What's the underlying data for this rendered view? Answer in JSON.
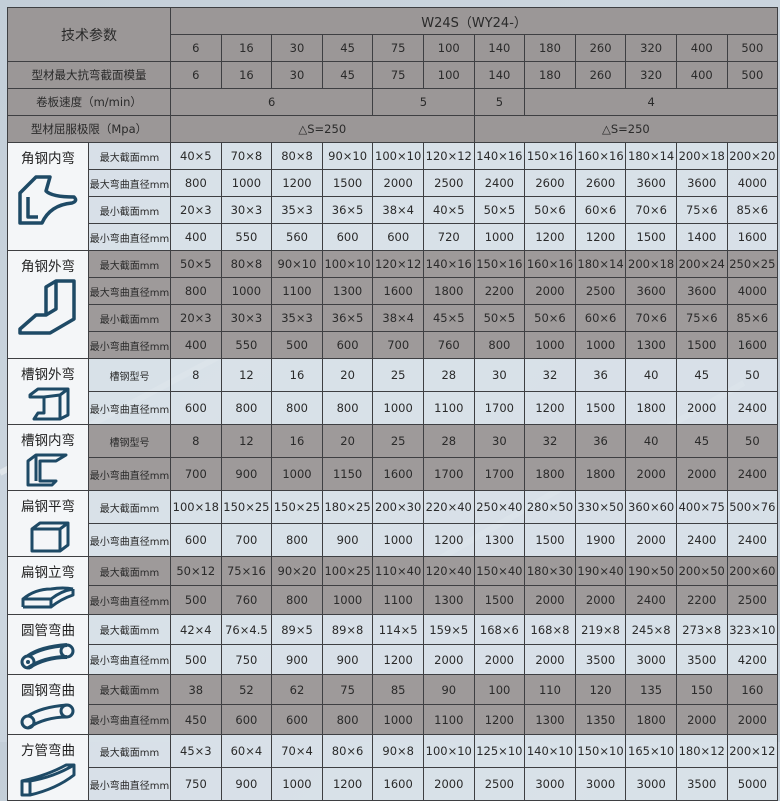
{
  "header": {
    "title": "技术参数",
    "model": "W24S（WY24-）",
    "models": [
      "6",
      "16",
      "30",
      "45",
      "75",
      "100",
      "140",
      "180",
      "260",
      "320",
      "400",
      "500"
    ],
    "modulus_label": "型材最大抗弯截面模量",
    "modulus": [
      "6",
      "16",
      "30",
      "45",
      "75",
      "100",
      "140",
      "180",
      "260",
      "320",
      "400",
      "500"
    ],
    "speed_label": "卷板速度（m/min）",
    "speed": [
      {
        "value": "6",
        "span": 4
      },
      {
        "value": "5",
        "span": 2
      },
      {
        "value": "5",
        "span": 1
      },
      {
        "value": "4",
        "span": 5
      }
    ],
    "yield_label": "型材屈服极限（Mpa）",
    "yield": [
      {
        "value": "△S=250",
        "span": 6
      },
      {
        "value": "△S=250",
        "span": 6
      }
    ]
  },
  "groups": [
    {
      "name": "角钢内弯",
      "icon": "angle-inner-bend-icon",
      "shade": "light",
      "rows": [
        {
          "label": "最大截面mm",
          "values": [
            "40×5",
            "70×8",
            "80×8",
            "90×10",
            "100×10",
            "120×12",
            "140×16",
            "150×16",
            "160×16",
            "180×14",
            "200×18",
            "200×20"
          ]
        },
        {
          "label": "最大弯曲直径mm",
          "values": [
            "800",
            "1000",
            "1200",
            "1500",
            "2000",
            "2500",
            "2400",
            "2600",
            "2600",
            "3600",
            "3600",
            "4000"
          ]
        },
        {
          "label": "最小截面mm",
          "values": [
            "20×3",
            "30×3",
            "35×3",
            "36×5",
            "38×4",
            "40×5",
            "50×5",
            "50×6",
            "60×6",
            "70×6",
            "75×6",
            "85×6"
          ]
        },
        {
          "label": "最小弯曲直径mm",
          "values": [
            "400",
            "550",
            "560",
            "600",
            "600",
            "720",
            "1000",
            "1200",
            "1200",
            "1500",
            "1400",
            "1600"
          ]
        }
      ]
    },
    {
      "name": "角钢外弯",
      "icon": "angle-outer-bend-icon",
      "shade": "dark",
      "rows": [
        {
          "label": "最大截面mm",
          "values": [
            "50×5",
            "80×8",
            "90×10",
            "100×10",
            "120×12",
            "140×16",
            "150×16",
            "160×16",
            "180×14",
            "200×18",
            "200×24",
            "250×25"
          ]
        },
        {
          "label": "最大弯曲直径mm",
          "values": [
            "800",
            "1000",
            "1100",
            "1300",
            "1600",
            "1800",
            "2200",
            "2000",
            "2500",
            "3600",
            "3600",
            "4000"
          ]
        },
        {
          "label": "最小截面mm",
          "values": [
            "20×3",
            "30×3",
            "35×3",
            "36×5",
            "38×4",
            "45×5",
            "50×5",
            "50×6",
            "60×6",
            "70×6",
            "75×6",
            "85×6"
          ]
        },
        {
          "label": "最小弯曲直径mm",
          "values": [
            "400",
            "550",
            "500",
            "600",
            "700",
            "760",
            "800",
            "1000",
            "1000",
            "1300",
            "1500",
            "1600"
          ]
        }
      ]
    },
    {
      "name": "槽钢外弯",
      "icon": "channel-outer-bend-icon",
      "shade": "light",
      "rows": [
        {
          "label": "槽钢型号",
          "values": [
            "8",
            "12",
            "16",
            "20",
            "25",
            "28",
            "30",
            "32",
            "36",
            "40",
            "45",
            "50"
          ]
        },
        {
          "label": "最小弯曲直径mm",
          "values": [
            "600",
            "800",
            "800",
            "800",
            "1000",
            "1100",
            "1700",
            "1200",
            "1500",
            "1800",
            "2000",
            "2400"
          ]
        }
      ]
    },
    {
      "name": "槽钢内弯",
      "icon": "channel-inner-bend-icon",
      "shade": "dark",
      "rows": [
        {
          "label": "槽钢型号",
          "values": [
            "8",
            "12",
            "16",
            "20",
            "25",
            "28",
            "30",
            "32",
            "36",
            "40",
            "45",
            "50"
          ]
        },
        {
          "label": "最小弯曲直径mm",
          "values": [
            "700",
            "900",
            "1000",
            "1150",
            "1600",
            "1700",
            "1700",
            "1800",
            "1800",
            "2000",
            "2000",
            "2400"
          ]
        }
      ]
    },
    {
      "name": "扁钢平弯",
      "icon": "flat-bar-flat-bend-icon",
      "shade": "light",
      "rows": [
        {
          "label": "最大截面mm",
          "values": [
            "100×18",
            "150×25",
            "150×25",
            "180×25",
            "200×30",
            "220×40",
            "250×40",
            "280×50",
            "330×50",
            "360×60",
            "400×75",
            "500×76"
          ]
        },
        {
          "label": "最小弯曲直径mm",
          "values": [
            "600",
            "700",
            "800",
            "900",
            "1000",
            "1200",
            "1300",
            "1500",
            "1900",
            "2000",
            "2400",
            "2400"
          ]
        }
      ]
    },
    {
      "name": "扁钢立弯",
      "icon": "flat-bar-edge-bend-icon",
      "shade": "dark",
      "rows": [
        {
          "label": "最大截面mm",
          "values": [
            "50×12",
            "75×16",
            "90×20",
            "100×25",
            "110×40",
            "120×40",
            "150×40",
            "180×30",
            "190×40",
            "190×50",
            "200×50",
            "200×60"
          ]
        },
        {
          "label": "最小弯曲直径mm",
          "values": [
            "500",
            "760",
            "800",
            "1000",
            "1100",
            "1300",
            "1500",
            "2000",
            "2000",
            "2400",
            "2200",
            "2500"
          ]
        }
      ]
    },
    {
      "name": "圆管弯曲",
      "icon": "round-tube-bend-icon",
      "shade": "light",
      "rows": [
        {
          "label": "最大截面mm",
          "values": [
            "42×4",
            "76×4.5",
            "89×5",
            "89×8",
            "114×5",
            "159×5",
            "168×6",
            "168×8",
            "219×8",
            "245×8",
            "273×8",
            "323×10"
          ]
        },
        {
          "label": "最小弯曲直径mm",
          "values": [
            "500",
            "750",
            "900",
            "900",
            "1200",
            "2000",
            "2000",
            "2000",
            "3500",
            "3000",
            "3500",
            "4200"
          ]
        }
      ]
    },
    {
      "name": "圆钢弯曲",
      "icon": "round-bar-bend-icon",
      "shade": "dark",
      "rows": [
        {
          "label": "最大截面mm",
          "values": [
            "38",
            "52",
            "62",
            "75",
            "85",
            "90",
            "100",
            "110",
            "120",
            "135",
            "150",
            "160"
          ]
        },
        {
          "label": "最小弯曲直径mm",
          "values": [
            "450",
            "600",
            "600",
            "800",
            "1000",
            "1100",
            "1200",
            "1300",
            "1350",
            "1800",
            "2000",
            "2000"
          ]
        }
      ]
    },
    {
      "name": "方管弯曲",
      "icon": "square-tube-bend-icon",
      "shade": "light",
      "rows": [
        {
          "label": "最大截面mm",
          "values": [
            "45×3",
            "60×4",
            "70×4",
            "80×6",
            "90×8",
            "100×10",
            "125×10",
            "140×10",
            "150×10",
            "165×10",
            "180×12",
            "200×12"
          ]
        },
        {
          "label": "最小弯曲直径mm",
          "values": [
            "750",
            "900",
            "1000",
            "1200",
            "1600",
            "2000",
            "2500",
            "3000",
            "3000",
            "3000",
            "3500",
            "5000"
          ]
        }
      ]
    }
  ],
  "colors": {
    "header": "#9b9797",
    "dark_row": "#9e9a9a",
    "light_row": "#dae3ea",
    "border": "#3e3f42",
    "icon": "#1e4a66"
  }
}
